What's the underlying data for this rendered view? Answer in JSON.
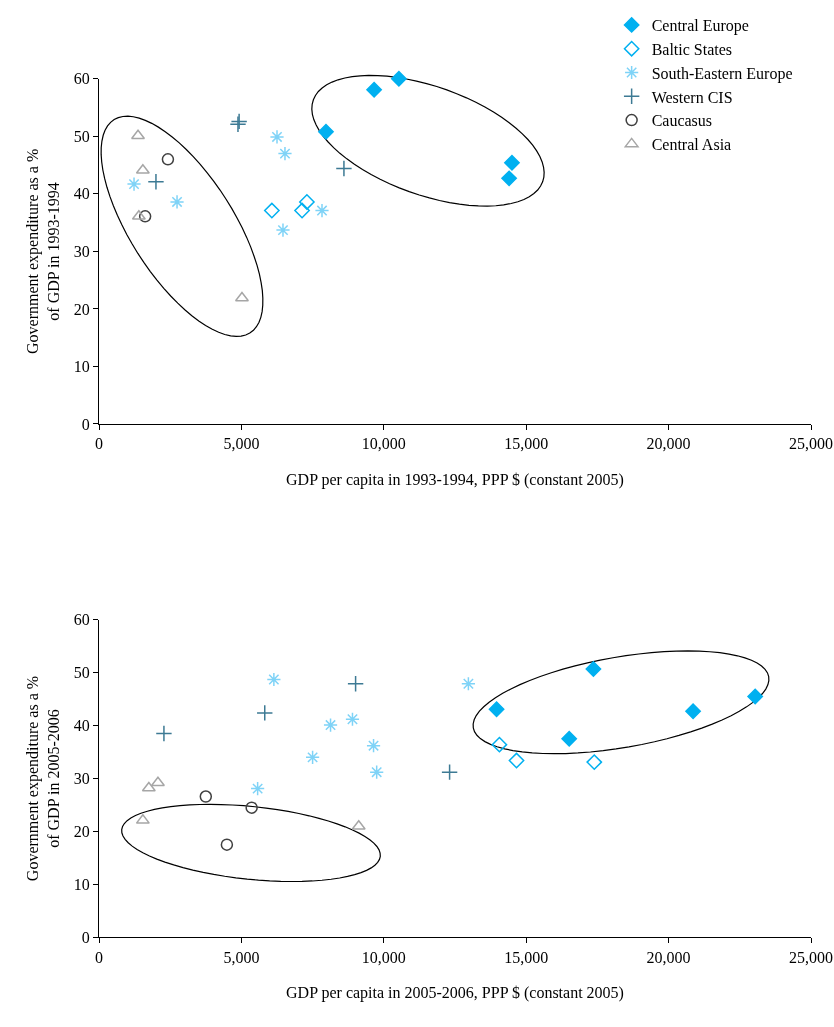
{
  "chart_data": [
    {
      "type": "scatter",
      "xlabel": "GDP per capita in 1993-1994, PPP $ (constant 2005)",
      "ylabel": "Government expenditure as a %\nof GDP in 1993-1994",
      "xlim": [
        0,
        25000
      ],
      "xticks": [
        0,
        {
          "value": 5000,
          "label": "5,000"
        },
        {
          "value": 10000,
          "label": "10,000"
        },
        {
          "value": 15000,
          "label": "15,000"
        },
        {
          "value": 20000,
          "label": "20,000"
        },
        {
          "value": 25000,
          "label": "25,000"
        }
      ],
      "ylim": [
        0,
        60
      ],
      "yticks": [
        0,
        10,
        20,
        30,
        40,
        50,
        60
      ],
      "grid": false,
      "legend": "top right",
      "series": [
        {
          "name": "Central Europe",
          "color": "#00b0f0",
          "marker": "diamond",
          "x": [
            7970,
            9660,
            10530,
            14500,
            14400
          ],
          "values": [
            50.8,
            58.1,
            60.0,
            45.4,
            42.7
          ]
        },
        {
          "name": "Baltic States",
          "color": "#00b0f0",
          "marker": "diamond-open",
          "x": [
            6070,
            7130,
            7300
          ],
          "values": [
            37.1,
            37.1,
            38.6
          ]
        },
        {
          "name": "South-Eastern Europe",
          "color": "#7fd3f7",
          "x": [
            1230,
            2740,
            6250,
            6530,
            6460,
            7830
          ],
          "values": [
            41.7,
            38.6,
            49.9,
            47.0,
            33.7,
            37.1
          ]
        },
        {
          "name": "Western CIS",
          "color": "#3d7a94",
          "marker": "cross",
          "x": [
            4920,
            4880,
            2000,
            8600
          ],
          "values": [
            52.6,
            52.1,
            42.1,
            44.4
          ]
        },
        {
          "name": "Caucasus",
          "color": "#404040",
          "marker": "circle-open",
          "x": [
            2420,
            1620
          ],
          "values": [
            46.0,
            36.1
          ]
        },
        {
          "name": "Central Asia",
          "color": "#a6a6a6",
          "marker": "triangle-open",
          "x": [
            1370,
            1540,
            1400,
            5020
          ],
          "values": [
            50.1,
            44.1,
            36.1,
            21.9
          ]
        }
      ]
    },
    {
      "type": "scatter",
      "xlabel": "GDP per capita in 2005-2006, PPP $ (constant 2005)",
      "ylabel": "Government expenditure as a %\nof GDP in 2005-2006",
      "xlim": [
        0,
        25000
      ],
      "xticks": [
        0,
        {
          "value": 5000,
          "label": "5,000"
        },
        {
          "value": 10000,
          "label": "10,000"
        },
        {
          "value": 15000,
          "label": "15,000"
        },
        {
          "value": 20000,
          "label": "20,000"
        },
        {
          "value": 25000,
          "label": "25,000"
        }
      ],
      "ylim": [
        0,
        60
      ],
      "yticks": [
        0,
        10,
        20,
        30,
        40,
        50,
        60
      ],
      "grid": false,
      "legend": false,
      "series": [
        {
          "color": "#00b0f0",
          "marker": "diamond",
          "x": [
            13960,
            17360,
            16510,
            20860,
            23040
          ],
          "values": [
            43.1,
            50.7,
            37.5,
            42.7,
            45.5
          ]
        },
        {
          "color": "#00b0f0",
          "marker": "diamond-open",
          "x": [
            14060,
            14660,
            17390
          ],
          "values": [
            36.4,
            33.4,
            33.1
          ]
        },
        {
          "color": "#7fd3f7",
          "x": [
            6140,
            5570,
            7500,
            8130,
            8900,
            9640,
            9750,
            12970
          ],
          "values": [
            48.7,
            28.1,
            34.0,
            40.1,
            41.2,
            36.2,
            31.2,
            47.9
          ]
        },
        {
          "color": "#3d7a94",
          "marker": "cross",
          "x": [
            2280,
            5820,
            9010,
            12310
          ],
          "values": [
            38.5,
            42.4,
            47.9,
            31.2
          ]
        },
        {
          "color": "#404040",
          "marker": "circle-open",
          "x": [
            3750,
            5360,
            4490
          ],
          "values": [
            26.6,
            24.5,
            17.5
          ]
        },
        {
          "color": "#a6a6a6",
          "marker": "triangle-open",
          "x": [
            1750,
            2070,
            1540,
            9120
          ],
          "values": [
            28.2,
            29.2,
            22.1,
            21.0
          ]
        }
      ]
    }
  ]
}
